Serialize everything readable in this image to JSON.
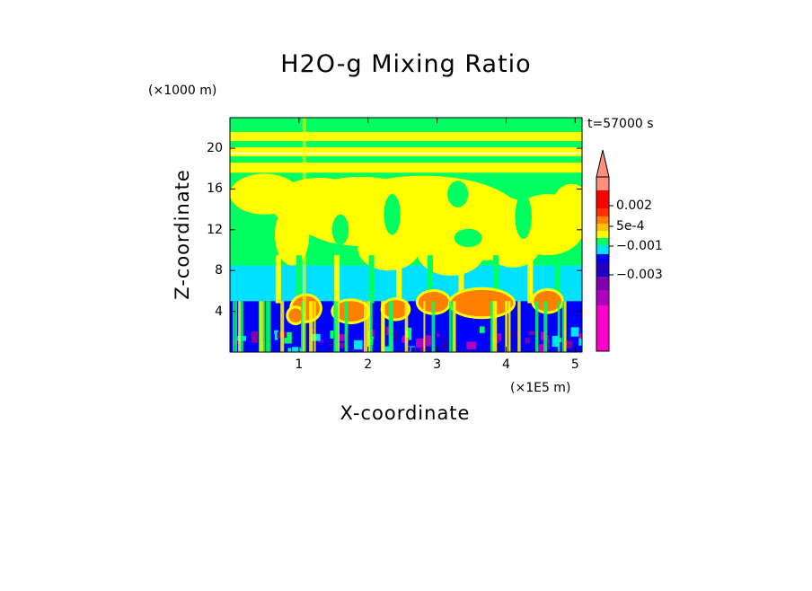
{
  "chart_data": {
    "type": "heatmap",
    "title": "H2O-g Mixing Ratio",
    "xlabel": "X-coordinate",
    "ylabel": "Z-coordinate",
    "x_unit": "(×1E5 m)",
    "y_unit": "(×1000 m)",
    "annotation": "t=57000 s",
    "xlim": [
      0,
      5.1
    ],
    "ylim": [
      0,
      23
    ],
    "x_ticks": [
      "1",
      "2",
      "3",
      "4",
      "5"
    ],
    "x_tick_values": [
      1,
      2,
      3,
      4,
      5
    ],
    "y_ticks": [
      "4",
      "8",
      "12",
      "16",
      "20"
    ],
    "y_tick_values": [
      4,
      8,
      12,
      16,
      20
    ],
    "colorbar": {
      "labels": [
        "0.002",
        "5e-4",
        "−0.001",
        "−0.003"
      ],
      "label_values": [
        0.002,
        0.0005,
        -0.001,
        -0.003
      ],
      "colors": [
        "#ff00cc",
        "#b000c0",
        "#8000b0",
        "#2000c0",
        "#0000ff",
        "#00e0ff",
        "#00ff60",
        "#ffff00",
        "#ffc000",
        "#ff8000",
        "#ff3000",
        "#ff0000",
        "#ff9080"
      ]
    },
    "layers": [
      {
        "z_range": [
          18.5,
          23
        ],
        "level": "green-with-yellow-bands"
      },
      {
        "z_range": [
          8.5,
          18.5
        ],
        "level": "yellow-plumes-on-green"
      },
      {
        "z_range": [
          5,
          8.5
        ],
        "level": "cyan"
      },
      {
        "z_range": [
          0,
          5
        ],
        "level": "blue-purple-with-orange-cells"
      }
    ]
  }
}
